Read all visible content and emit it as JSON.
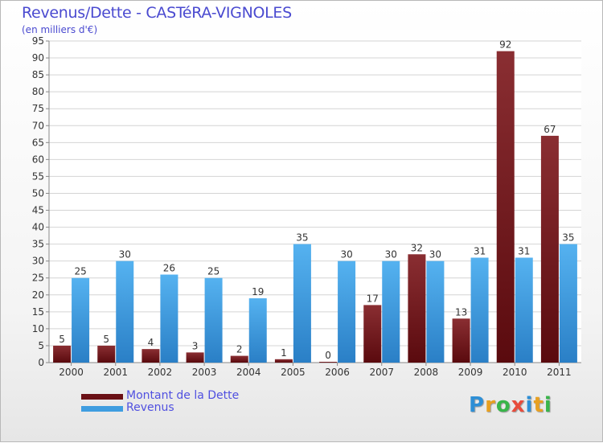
{
  "chart_data": {
    "type": "bar",
    "title": "Revenus/Dette - CASTéRA-VIGNOLES",
    "subtitle": "(en milliers d'€)",
    "xlabel": "",
    "ylabel": "",
    "ylim": [
      0,
      95
    ],
    "yticks": [
      0,
      5,
      10,
      15,
      20,
      25,
      30,
      35,
      40,
      45,
      50,
      55,
      60,
      65,
      70,
      75,
      80,
      85,
      90,
      95
    ],
    "grid": true,
    "categories": [
      "2000",
      "2001",
      "2002",
      "2003",
      "2004",
      "2005",
      "2006",
      "2007",
      "2008",
      "2009",
      "2010",
      "2011"
    ],
    "series": [
      {
        "name": "Montant de la Dette",
        "color": "#7a1e22",
        "values": [
          5,
          5,
          4,
          3,
          2,
          1,
          0,
          17,
          32,
          13,
          92,
          67
        ]
      },
      {
        "name": "Revenus",
        "color": "#3f9de0",
        "values": [
          25,
          30,
          26,
          25,
          19,
          35,
          30,
          30,
          30,
          31,
          31,
          35
        ]
      }
    ],
    "legend_position": "bottom-left"
  },
  "logo": {
    "letters": [
      {
        "ch": "P",
        "color": "#2e8fd6"
      },
      {
        "ch": "r",
        "color": "#e8a020"
      },
      {
        "ch": "o",
        "color": "#39b54a"
      },
      {
        "ch": "x",
        "color": "#e84c3c"
      },
      {
        "ch": "i",
        "color": "#2e8fd6"
      },
      {
        "ch": "t",
        "color": "#e8a020"
      },
      {
        "ch": "i",
        "color": "#39b54a"
      }
    ]
  }
}
